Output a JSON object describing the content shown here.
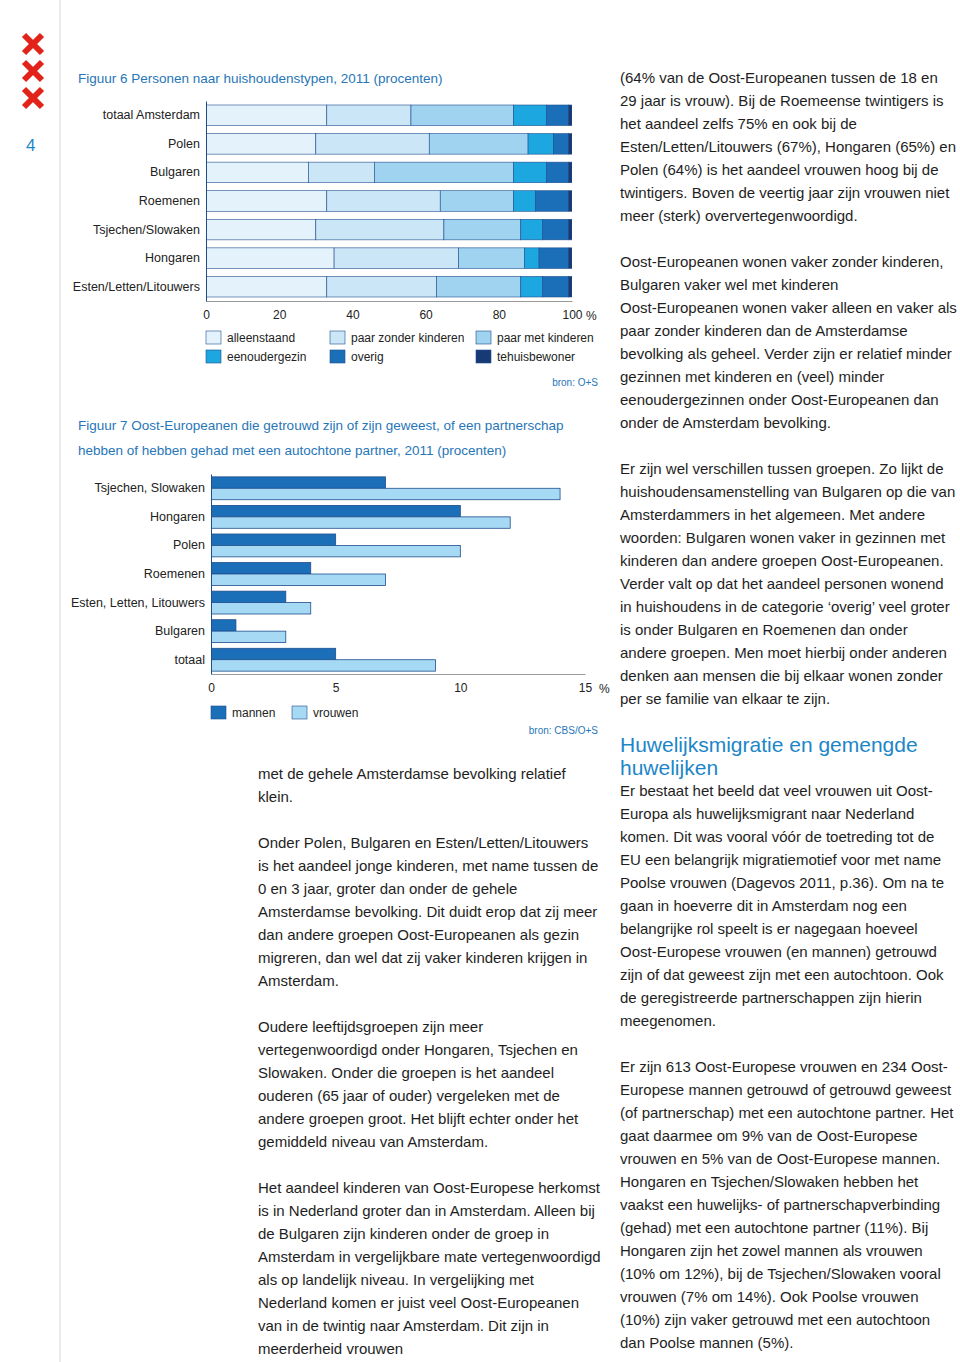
{
  "page": {
    "number": "4"
  },
  "chart_data": [
    {
      "type": "bar",
      "orientation": "horizontal",
      "stacked": true,
      "grid": false,
      "legend": "bottom",
      "title": "Figuur 6 Personen naar huishoudenstypen, 2011 (procenten)",
      "categories": [
        "totaal Amsterdam",
        "Polen",
        "Bulgaren",
        "Roemenen",
        "Tsjechen/Slowaken",
        "Hongaren",
        "Esten/Letten/Litouwers"
      ],
      "series": [
        {
          "name": "alleenstaand",
          "color": "#e4f2fb",
          "values": [
            33,
            30,
            28,
            33,
            30,
            35,
            33
          ]
        },
        {
          "name": "paar zonder kinderen",
          "color": "#cbe6f6",
          "values": [
            23,
            31,
            18,
            31,
            35,
            34,
            30
          ]
        },
        {
          "name": "paar met kinderen",
          "color": "#9fd3f0",
          "values": [
            28,
            27,
            38,
            20,
            21,
            18,
            23
          ]
        },
        {
          "name": "eenoudergezin",
          "color": "#1da7e0",
          "values": [
            9,
            7,
            9,
            6,
            6,
            4,
            6
          ]
        },
        {
          "name": "overig",
          "color": "#1b6fb8",
          "values": [
            6,
            4,
            6,
            9,
            7,
            8,
            7
          ]
        },
        {
          "name": "tehuisbewoner",
          "color": "#173a75",
          "values": [
            1,
            1,
            1,
            1,
            1,
            1,
            1
          ]
        }
      ],
      "xlim": [
        0,
        100
      ],
      "xticks": [
        0,
        20,
        40,
        60,
        80,
        100
      ],
      "xlabel": "%",
      "source": "bron: O+S"
    },
    {
      "type": "bar",
      "orientation": "horizontal",
      "stacked": false,
      "grid": false,
      "legend": "bottom",
      "title": "Figuur 7 Oost-Europeanen die getrouwd zijn of zijn geweest, of een partnerschap hebben of hebben gehad met een autochtone partner, 2011 (procenten)",
      "categories": [
        "Tsjechen, Slowaken",
        "Hongaren",
        "Polen",
        "Roemenen",
        "Esten, Letten, Litouwers",
        "Bulgaren",
        "totaal"
      ],
      "series": [
        {
          "name": "mannen",
          "color": "#1b6fb8",
          "values": [
            7,
            10,
            5,
            4,
            3,
            1,
            5
          ]
        },
        {
          "name": "vrouwen",
          "color": "#a6d9f3",
          "values": [
            14,
            12,
            10,
            7,
            4,
            3,
            9
          ]
        }
      ],
      "xlim": [
        0,
        15
      ],
      "xticks": [
        0,
        5,
        10,
        15
      ],
      "xlabel": "%",
      "source": "bron: CBS/O+S"
    }
  ],
  "document": {
    "middle_column": [
      "met de gehele Amsterdamse bevolking relatief klein.",
      "Onder Polen, Bulgaren en Esten/Letten/Litouwers is het aandeel jonge kinderen, met name tussen de 0 en 3 jaar, groter dan onder de gehele Amsterdamse bevolking. Dit duidt erop dat zij meer dan andere groepen Oost-Europeanen als gezin migreren, dan wel dat zij vaker kinderen krijgen in Amsterdam.",
      "Oudere leeftijdsgroepen zijn meer vertegenwoordigd onder Hongaren, Tsjechen en Slowaken. Onder die groepen is het aandeel ouderen (65 jaar of ouder) vergeleken met de andere groepen groot. Het blijft echter onder het gemiddeld niveau van Amsterdam.",
      "Het aandeel kinderen van Oost-Europese herkomst is in Nederland groter dan in Amsterdam. Alleen bij de Bulgaren zijn kinderen onder de groep in Amsterdam in vergelijkbare mate vertegenwoordigd als op landelijk niveau. In vergelijking met Nederland komen er juist veel Oost-Europeanen van in de twintig naar Amsterdam. Dit zijn in meerderheid vrouwen"
    ],
    "right_column": {
      "intro": "(64% van de Oost-Europeanen tussen de 18 en 29 jaar is vrouw). Bij de Roemeense twintigers is het aandeel zelfs 75% en ook bij de Esten/Letten/Litouwers (67%), Hongaren (65%) en Polen (64%) is het aandeel vrouwen hoog bij de twintigers. Boven de veertig jaar zijn vrouwen niet meer (sterk) oververtegenwoordigd.",
      "lead": "Oost-Europeanen wonen vaker zonder kinderen, Bulgaren vaker wel met kinderen",
      "paragraphs_1": [
        "Oost-Europeanen wonen vaker alleen en vaker als paar zonder kinderen dan de Amsterdamse bevolking als geheel. Verder zijn er relatief minder gezinnen met kinderen en (veel) minder eenoudergezinnen onder Oost-Europeanen dan onder de Amsterdam bevolking.",
        "Er zijn wel verschillen tussen groepen. Zo lijkt de huishoudensamenstelling van Bulgaren op die van Amsterdammers in het algemeen. Met andere woorden: Bulgaren wonen vaker in gezinnen met kinderen dan andere groepen Oost-Europeanen. Verder valt op dat het aandeel personen wonend in huishoudens in de categorie ‘overig’ veel groter is onder Bulgaren en Roemenen dan onder andere groepen. Men moet hierbij onder anderen denken aan mensen die bij elkaar wonen zonder per se familie van elkaar te zijn."
      ],
      "heading": "Huwelijksmigratie en gemengde huwelijken",
      "paragraphs_2": [
        "Er bestaat het beeld dat veel vrouwen uit Oost-Europa als huwelijksmigrant naar Nederland komen. Dit was vooral vóór de toetreding tot de EU een belangrijk migratiemotief voor met name Poolse vrouwen (Dagevos 2011, p.36). Om na te gaan in hoeverre dit in Amsterdam nog een belangrijke rol speelt is er nagegaan hoeveel Oost-Europese vrouwen (en mannen) getrouwd zijn of dat geweest zijn met een autochtoon. Ook de geregistreerde partnerschappen zijn hierin meegenomen.",
        "Er zijn 613 Oost-Europese vrouwen en 234 Oost-Europese mannen getrouwd of getrouwd geweest (of partnerschap) met een autochtone partner. Het gaat daarmee om 9% van de Oost-Europese vrouwen en 5% van de Oost-Europese mannen. Hongaren en Tsjechen/Slowaken hebben het vaakst een huwelijks- of partnerschapverbinding (gehad) met een autochtone partner (11%). Bij Hongaren zijn het zowel mannen als vrouwen (10% om 12%), bij de Tsjechen/Slowaken vooral vrouwen (7% om 14%). Ook Poolse vrouwen (10%) zijn vaker getrouwd met een autochtoon dan Poolse mannen (5%)."
      ]
    }
  }
}
